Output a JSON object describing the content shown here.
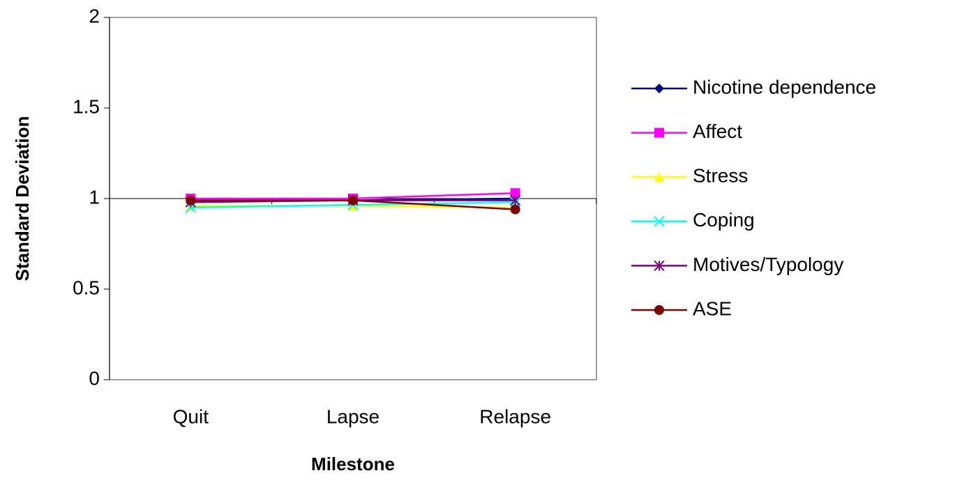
{
  "chart_data": {
    "type": "line",
    "x_label": "Milestone",
    "y_label": "Standard Deviation",
    "categories": [
      "Quit",
      "Lapse",
      "Relapse"
    ],
    "ylim": [
      0,
      2
    ],
    "yticks": [
      0,
      0.5,
      1,
      1.5,
      2
    ],
    "x_axis_crosses": 1,
    "grid": false,
    "legend": "right",
    "series": [
      {
        "name": "Nicotine dependence",
        "color": "#000080",
        "marker": "diamond",
        "values": [
          0.99,
          0.99,
          1.0
        ]
      },
      {
        "name": "Affect",
        "color": "#ff00ff",
        "marker": "square",
        "values": [
          1.0,
          1.0,
          1.03
        ]
      },
      {
        "name": "Stress",
        "color": "#ffff00",
        "marker": "triangle",
        "values": [
          0.96,
          0.96,
          0.95
        ]
      },
      {
        "name": "Coping",
        "color": "#00ffff",
        "marker": "x",
        "values": [
          0.95,
          0.965,
          0.98
        ]
      },
      {
        "name": "Motives/Typology",
        "color": "#800080",
        "marker": "star",
        "values": [
          0.98,
          0.99,
          0.99
        ]
      },
      {
        "name": "ASE",
        "color": "#800000",
        "marker": "circle",
        "values": [
          0.99,
          0.99,
          0.94
        ]
      }
    ]
  }
}
